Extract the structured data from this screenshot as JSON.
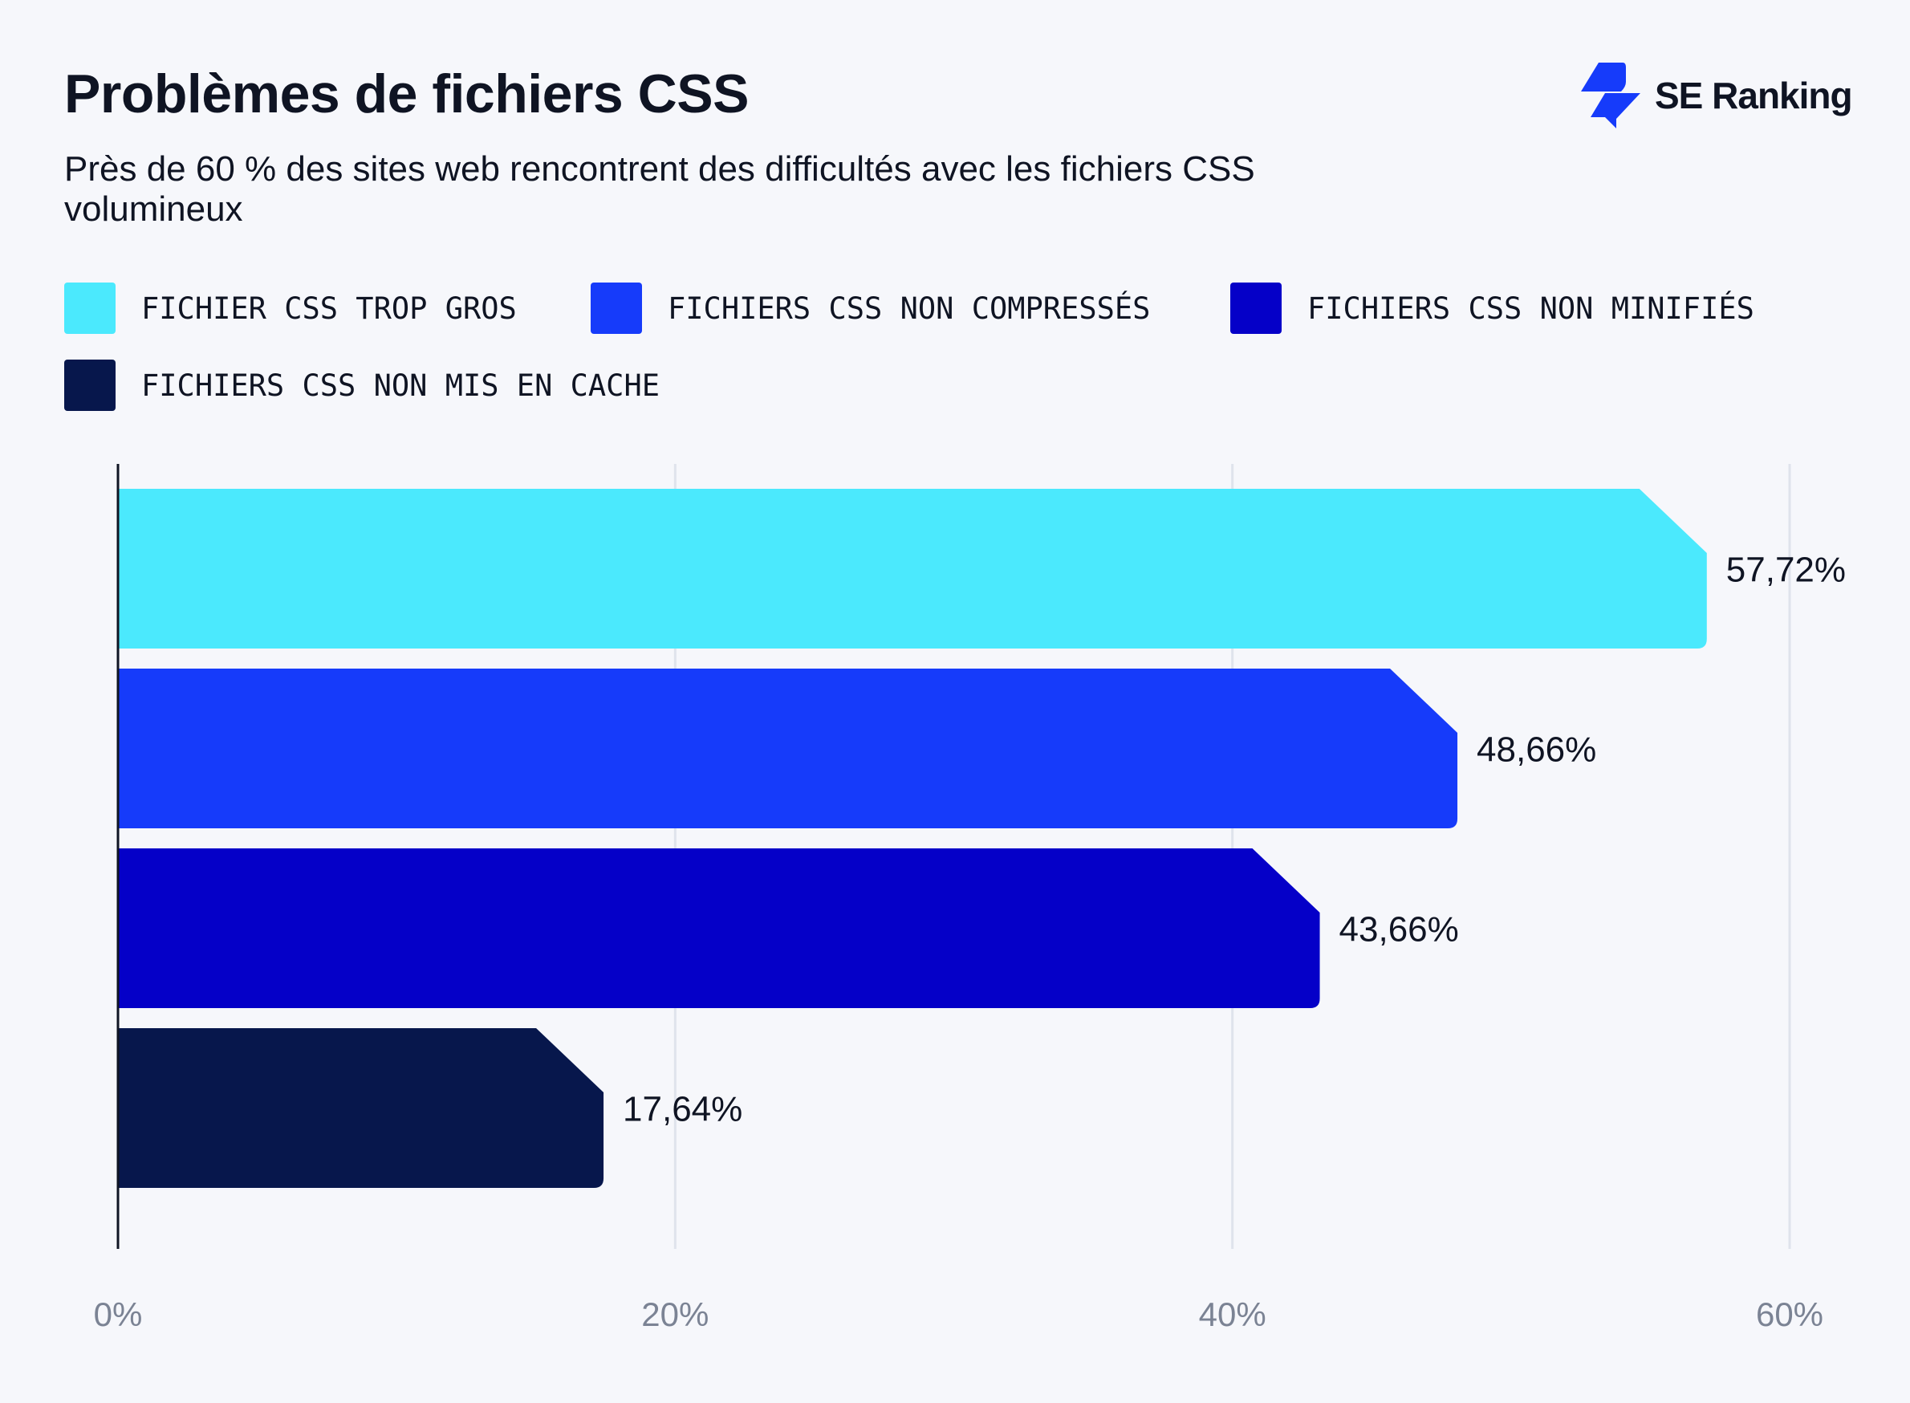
{
  "header": {
    "title": "Problèmes de fichiers CSS",
    "subtitle": "Près de 60 % des sites web rencontrent des difficultés avec les fichiers CSS volumineux",
    "logo_text": "SE Ranking",
    "logo_color": "#163bfa"
  },
  "chart_data": {
    "type": "bar",
    "orientation": "horizontal",
    "title": "Problèmes de fichiers CSS",
    "subtitle": "Près de 60 % des sites web rencontrent des difficultés avec les fichiers CSS volumineux",
    "categories": [
      "FICHIER CSS TROP GROS",
      "FICHIERS CSS NON COMPRESSÉS",
      "FICHIERS CSS NON MINIFIÉS",
      "FICHIERS CSS NON MIS EN CACHE"
    ],
    "values": [
      57.72,
      48.66,
      43.66,
      17.64
    ],
    "data_labels": [
      "57,72%",
      "48,66%",
      "43,66%",
      "17,64%"
    ],
    "colors": [
      "#4be9fd",
      "#163bfa",
      "#0500c8",
      "#07174c"
    ],
    "xlim": [
      0,
      60
    ],
    "x_ticks": [
      0,
      20,
      40,
      60
    ],
    "x_tick_labels": [
      "0%",
      "20%",
      "40%",
      "60%"
    ],
    "grid": true,
    "legend_position": "top-left",
    "xlabel": "",
    "ylabel": ""
  }
}
